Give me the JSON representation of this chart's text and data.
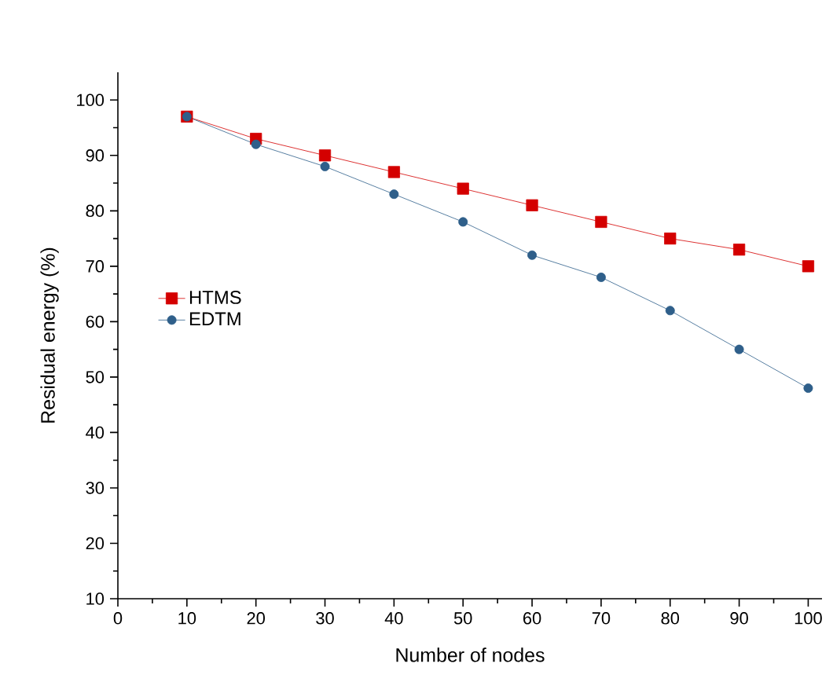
{
  "chart_data": {
    "type": "line",
    "xlabel": "Number of nodes",
    "ylabel": "Residual energy (%)",
    "x": [
      10,
      20,
      30,
      40,
      50,
      60,
      70,
      80,
      90,
      100
    ],
    "series": [
      {
        "name": "HTMS",
        "color": "#d40000",
        "marker": "square",
        "values": [
          97,
          93,
          90,
          87,
          84,
          81,
          78,
          75,
          73,
          70
        ]
      },
      {
        "name": "EDTM",
        "color": "#2f5f8a",
        "marker": "circle",
        "values": [
          97,
          92,
          88,
          83,
          78,
          72,
          68,
          62,
          55,
          48
        ]
      }
    ],
    "xlim": [
      0,
      102
    ],
    "ylim": [
      10,
      105
    ],
    "xticks": [
      0,
      10,
      20,
      30,
      40,
      50,
      60,
      70,
      80,
      90,
      100
    ],
    "yticks": [
      10,
      20,
      30,
      40,
      50,
      60,
      70,
      80,
      90,
      100
    ],
    "legend": "left",
    "grid": false
  }
}
